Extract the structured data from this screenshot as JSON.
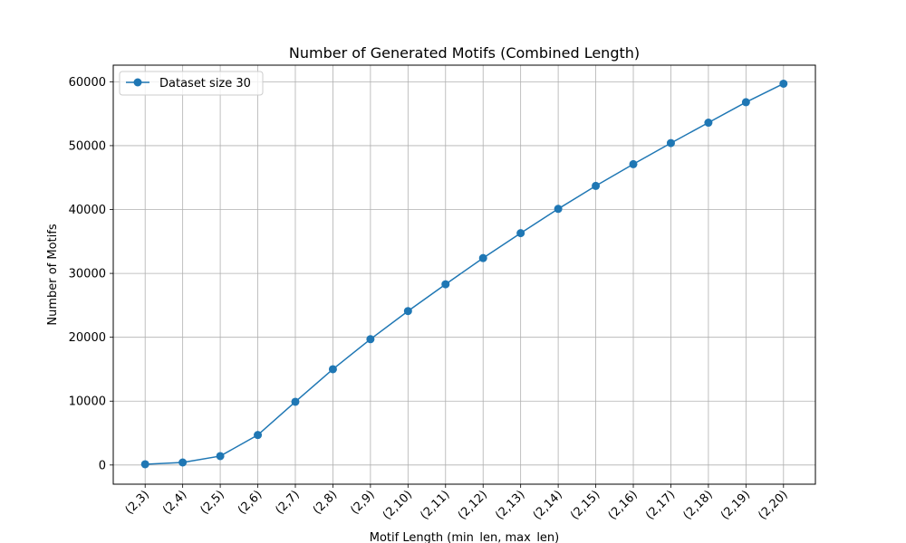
{
  "chart_data": {
    "type": "line",
    "title": "Number of Generated Motifs (Combined Length)",
    "xlabel": "Motif Length (min_len, max_len)",
    "ylabel": "Number of Motifs",
    "categories": [
      "(2,3)",
      "(2,4)",
      "(2,5)",
      "(2,6)",
      "(2,7)",
      "(2,8)",
      "(2,9)",
      "(2,10)",
      "(2,11)",
      "(2,12)",
      "(2,13)",
      "(2,14)",
      "(2,15)",
      "(2,16)",
      "(2,17)",
      "(2,18)",
      "(2,19)",
      "(2,20)"
    ],
    "series": [
      {
        "name": "Dataset size 30",
        "color": "#1f77b4",
        "marker": "circle",
        "values": [
          120,
          400,
          1400,
          4700,
          9900,
          15000,
          19700,
          24100,
          28300,
          32400,
          36300,
          40100,
          43700,
          47100,
          50400,
          53600,
          56800,
          59700
        ]
      }
    ],
    "ylim": [
      -3000,
      62600
    ],
    "yticks": [
      0,
      10000,
      20000,
      30000,
      40000,
      50000,
      60000
    ],
    "grid": true,
    "legend_position": "top-left"
  }
}
